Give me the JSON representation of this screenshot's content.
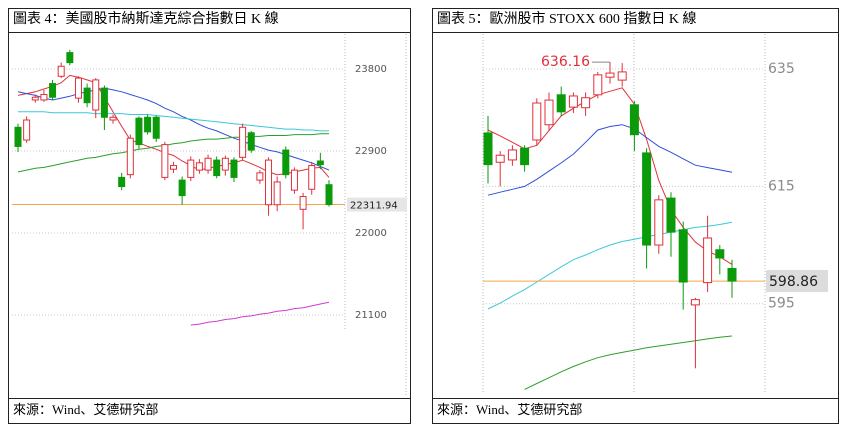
{
  "chart_data": [
    {
      "type": "candlestick",
      "title": "圖表 4：美國股市納斯達克綜合指數日 K 線",
      "source": "來源：Wind、艾德研究部",
      "up_color": "#e0303a",
      "down_color": "#0a9a0a",
      "last_line_color": "#f5a54a",
      "annotate_high": false,
      "ylim": [
        20935,
        24206
      ],
      "yticks": [
        21100,
        22000,
        22900,
        23800
      ],
      "grid": true,
      "open": [
        23160,
        23020,
        23460,
        23460,
        23640,
        23720,
        23980,
        23480,
        23590,
        23350,
        23590,
        23240,
        22610,
        22640,
        23260,
        23270,
        23270,
        22610,
        22700,
        22580,
        22610,
        22690,
        22690,
        22800,
        22690,
        22800,
        22830,
        23100,
        22580,
        22310,
        22310,
        22910,
        22470,
        22260,
        22480,
        22790,
        22530
      ],
      "high": [
        23200,
        23280,
        23520,
        23570,
        23680,
        23870,
        24010,
        23720,
        23640,
        23700,
        23620,
        23300,
        22660,
        23080,
        23280,
        23300,
        23290,
        23000,
        22780,
        22620,
        22840,
        22810,
        22860,
        22840,
        22850,
        22830,
        23200,
        23120,
        22690,
        22830,
        22620,
        22950,
        22720,
        22440,
        22780,
        22880,
        22580
      ],
      "low": [
        22890,
        22990,
        23430,
        23440,
        23460,
        23700,
        23840,
        23430,
        23380,
        23260,
        23130,
        23200,
        22470,
        22600,
        22920,
        23080,
        23000,
        22580,
        22660,
        22310,
        22570,
        22650,
        22650,
        22600,
        22630,
        22560,
        22800,
        22880,
        22540,
        22190,
        22240,
        22600,
        22430,
        22040,
        22420,
        22700,
        22290
      ],
      "close": [
        22950,
        23240,
        23490,
        23520,
        23490,
        23830,
        23870,
        23700,
        23430,
        23680,
        23270,
        23270,
        22510,
        23040,
        22970,
        23110,
        23040,
        22970,
        22740,
        22410,
        22800,
        22770,
        22820,
        22630,
        22820,
        22610,
        23160,
        22910,
        22660,
        22800,
        22560,
        22640,
        22690,
        22400,
        22740,
        22750,
        22311.94
      ],
      "lines": [
        {
          "color": "#e0303a",
          "values": [
            23510,
            23530,
            23550,
            23580,
            23610,
            23650,
            23730,
            23710,
            23680,
            23650,
            23490,
            23330,
            23170,
            23020,
            22990,
            22950,
            22920,
            22880,
            22850,
            22790,
            22740,
            22690,
            22710,
            22730,
            22750,
            22770,
            22800,
            22760,
            22720,
            22670,
            22640,
            22650,
            22670,
            22690,
            22710,
            22720,
            22610
          ]
        },
        {
          "color": "#2f4fd8",
          "values": [
            23550,
            23530,
            23510,
            23480,
            23460,
            23480,
            23500,
            23530,
            23550,
            23570,
            23590,
            23570,
            23550,
            23520,
            23490,
            23460,
            23420,
            23370,
            23330,
            23280,
            23240,
            23190,
            23150,
            23120,
            23080,
            23040,
            23010,
            22970,
            22940,
            22910,
            22890,
            22860,
            22830,
            22800,
            22770,
            22730,
            22690
          ]
        },
        {
          "color": "#3cc8d8",
          "values": [
            23330,
            23330,
            23330,
            23330,
            23320,
            23320,
            23320,
            23320,
            23320,
            23310,
            23310,
            23310,
            23310,
            23300,
            23300,
            23300,
            23290,
            23280,
            23270,
            23260,
            23250,
            23240,
            23230,
            23220,
            23210,
            23200,
            23190,
            23180,
            23170,
            23160,
            23150,
            23140,
            23140,
            23130,
            23130,
            23120,
            23120
          ]
        },
        {
          "color": "#2aa02a",
          "values": [
            22670,
            22690,
            22710,
            22720,
            22740,
            22760,
            22780,
            22800,
            22820,
            22830,
            22850,
            22870,
            22880,
            22900,
            22920,
            22930,
            22950,
            22960,
            22980,
            22990,
            23010,
            23020,
            23030,
            23030,
            23040,
            23050,
            23050,
            23060,
            23060,
            23070,
            23070,
            23070,
            23080,
            23080,
            23080,
            23090,
            23090
          ]
        },
        {
          "color": "#d23cd2",
          "values": [
            null,
            null,
            null,
            null,
            null,
            null,
            null,
            null,
            null,
            null,
            null,
            null,
            null,
            null,
            null,
            null,
            null,
            null,
            null,
            null,
            20990,
            21000,
            21020,
            21030,
            21050,
            21060,
            21080,
            21090,
            21110,
            21120,
            21140,
            21150,
            21170,
            21180,
            21200,
            21220,
            21240
          ]
        }
      ]
    },
    {
      "type": "candlestick",
      "title": "圖表 5：歐洲股市 STOXX 600 指數日 K 線",
      "source": "來源：Wind、艾德研究部",
      "up_color": "#e0303a",
      "down_color": "#0a9a0a",
      "last_line_color": "#f5a54a",
      "annotate_high": true,
      "ylim": [
        580.3,
        641.3
      ],
      "yticks": [
        595,
        615,
        635
      ],
      "grid": true,
      "open": [
        624.1,
        619.1,
        619.5,
        621.5,
        622.9,
        625.5,
        630.6,
        628.5,
        628.4,
        630.6,
        633.6,
        633.1,
        628.9,
        620.7,
        605.0,
        613.0,
        607.6,
        594.8,
        598.6,
        604.2,
        601.0
      ],
      "high": [
        627,
        621,
        622,
        622,
        630,
        631,
        632,
        631,
        631,
        634.5,
        636.16,
        636,
        629.5,
        621.5,
        613.5,
        614,
        609,
        596,
        610,
        605,
        602.5
      ],
      "low": [
        615.5,
        615,
        618.5,
        617.5,
        622,
        624.5,
        627,
        627.5,
        627,
        630,
        632.5,
        632,
        621,
        601,
        603.5,
        603,
        594,
        584.0,
        597,
        600,
        596
      ],
      "close": [
        618.7,
        620.3,
        621.2,
        618.7,
        629.2,
        629.7,
        627.7,
        630.4,
        630.1,
        634.0,
        634.3,
        634.5,
        623.8,
        605.0,
        612.7,
        607.2,
        598.7,
        595.7,
        606.2,
        602.8,
        598.86
      ],
      "lines": [
        {
          "color": "#e0303a",
          "values": [
            624.6,
            623.6,
            622.5,
            621.4,
            622,
            624.5,
            627,
            628.3,
            629.5,
            630.6,
            631.2,
            631.8,
            629,
            623,
            616,
            611,
            608,
            605.5,
            604,
            603,
            601.7
          ]
        },
        {
          "color": "#2f4fd8",
          "values": [
            613.5,
            614,
            614.5,
            615,
            616.2,
            617.6,
            619,
            620.5,
            622.5,
            624.6,
            625.2,
            625.5,
            624.8,
            623.3,
            621.8,
            620.8,
            619.7,
            618.6,
            618.2,
            617.8,
            617.4
          ]
        },
        {
          "color": "#3cc8d8",
          "values": [
            594.1,
            595.1,
            596.3,
            597.4,
            598.7,
            600,
            601.3,
            602.5,
            603.3,
            604.2,
            605,
            605.6,
            606,
            606.4,
            606.8,
            607.2,
            607.6,
            608,
            608.2,
            608.5,
            608.9
          ]
        },
        {
          "color": "#2aa02a",
          "values": [
            null,
            null,
            null,
            580.4,
            581.4,
            582.4,
            583.4,
            584.3,
            585.1,
            585.8,
            586.3,
            586.7,
            587.1,
            587.5,
            587.8,
            588.1,
            588.4,
            588.7,
            589,
            589.3,
            589.5
          ]
        }
      ]
    }
  ]
}
